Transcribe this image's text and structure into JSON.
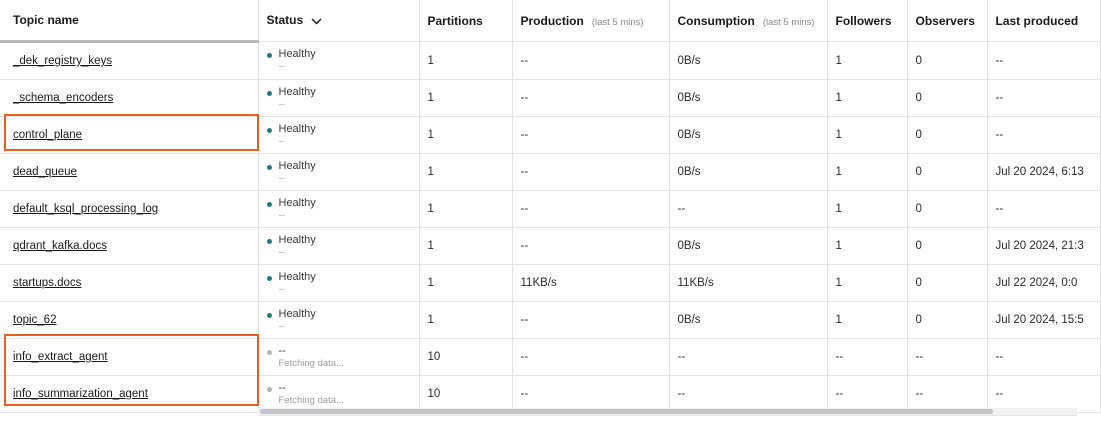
{
  "columns": [
    {
      "label": "Topic name"
    },
    {
      "label": "Status"
    },
    {
      "label": "Partitions"
    },
    {
      "label": "Production",
      "sub": "(last 5 mins)"
    },
    {
      "label": "Consumption",
      "sub": "(last 5 mins)"
    },
    {
      "label": "Followers"
    },
    {
      "label": "Observers"
    },
    {
      "label": "Last produced"
    }
  ],
  "rows": [
    {
      "name": "_dek_registry_keys",
      "status": "Healthy",
      "status_sub": "--",
      "status_color": "#1a7f7a",
      "partitions": "1",
      "production": "--",
      "consumption": "0B/s",
      "followers": "1",
      "observers": "0",
      "last_produced": "--"
    },
    {
      "name": "_schema_encoders",
      "status": "Healthy",
      "status_sub": "--",
      "status_color": "#1a7f7a",
      "partitions": "1",
      "production": "--",
      "consumption": "0B/s",
      "followers": "1",
      "observers": "0",
      "last_produced": "--"
    },
    {
      "name": "control_plane",
      "status": "Healthy",
      "status_sub": "--",
      "status_color": "#1a7f7a",
      "partitions": "1",
      "production": "--",
      "consumption": "0B/s",
      "followers": "1",
      "observers": "0",
      "last_produced": "--"
    },
    {
      "name": "dead_queue",
      "status": "Healthy",
      "status_sub": "--",
      "status_color": "#1a7f7a",
      "partitions": "1",
      "production": "--",
      "consumption": "0B/s",
      "followers": "1",
      "observers": "0",
      "last_produced": "Jul 20 2024, 6:13"
    },
    {
      "name": "default_ksql_processing_log",
      "status": "Healthy",
      "status_sub": "--",
      "status_color": "#1a7f7a",
      "partitions": "1",
      "production": "--",
      "consumption": "--",
      "followers": "1",
      "observers": "0",
      "last_produced": "--"
    },
    {
      "name": "qdrant_kafka.docs",
      "status": "Healthy",
      "status_sub": "--",
      "status_color": "#1a7f7a",
      "partitions": "1",
      "production": "--",
      "consumption": "0B/s",
      "followers": "1",
      "observers": "0",
      "last_produced": "Jul 20 2024, 21:3"
    },
    {
      "name": "startups.docs",
      "status": "Healthy",
      "status_sub": "--",
      "status_color": "#1a7f7a",
      "partitions": "1",
      "production": "11KB/s",
      "consumption": "11KB/s",
      "followers": "1",
      "observers": "0",
      "last_produced": "Jul 22 2024, 0:0"
    },
    {
      "name": "topic_62",
      "status": "Healthy",
      "status_sub": "--",
      "status_color": "#1a7f7a",
      "partitions": "1",
      "production": "--",
      "consumption": "0B/s",
      "followers": "1",
      "observers": "0",
      "last_produced": "Jul 20 2024, 15:5"
    },
    {
      "name": "info_extract_agent",
      "status": "--",
      "status_sub": "Fetching data...",
      "status_color": "#b4b4b8",
      "partitions": "10",
      "production": "--",
      "consumption": "--",
      "followers": "--",
      "observers": "--",
      "last_produced": "--"
    },
    {
      "name": "info_summarization_agent",
      "status": "--",
      "status_sub": "Fetching data...",
      "status_color": "#b4b4b8",
      "partitions": "10",
      "production": "--",
      "consumption": "--",
      "followers": "--",
      "observers": "--",
      "last_produced": "--"
    }
  ],
  "highlight_color": "#e8601c",
  "horizontal_scroll_position": 0.9
}
